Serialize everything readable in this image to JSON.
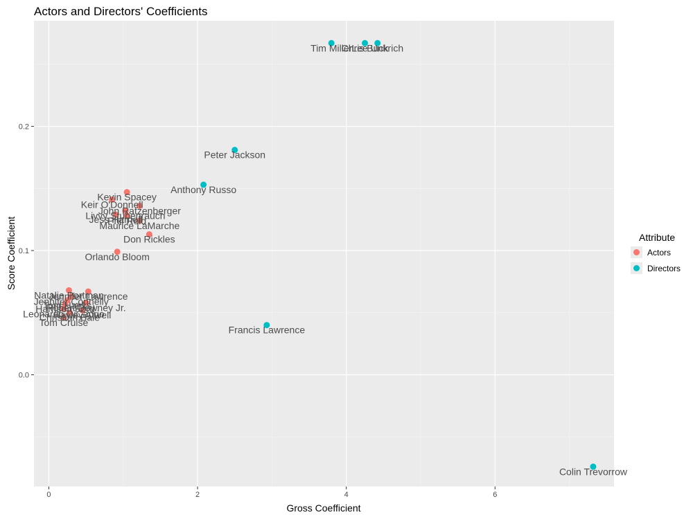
{
  "chart_data": {
    "type": "scatter",
    "title": "Actors and Directors' Coefficients",
    "xlabel": "Gross Coefficient",
    "ylabel": "Score Coefficient",
    "xlim": [
      -0.2,
      7.6
    ],
    "ylim": [
      -0.09,
      0.285
    ],
    "x_ticks": [
      0,
      2,
      4,
      6
    ],
    "y_ticks": [
      0.0,
      0.1,
      0.2
    ],
    "x_tick_labels": [
      "0",
      "2",
      "4",
      "6"
    ],
    "y_tick_labels": [
      "0.0",
      "0.1",
      "0.2"
    ],
    "grid": true,
    "legend": {
      "title": "Attribute",
      "position": "right",
      "entries": [
        {
          "label": "Actors",
          "color": "#F8766D"
        },
        {
          "label": "Directors",
          "color": "#00BFC4"
        }
      ]
    },
    "series": [
      {
        "name": "Actors",
        "color": "#F8766D",
        "points": [
          {
            "x": 1.05,
            "y": 0.147,
            "label": "Kevin Spacey"
          },
          {
            "x": 0.85,
            "y": 0.141,
            "label": "Keir O'Donnell"
          },
          {
            "x": 1.22,
            "y": 0.136,
            "label": "John Ratzenberger"
          },
          {
            "x": 1.03,
            "y": 0.132,
            "label": "Livvy Stubenrauch"
          },
          {
            "x": 0.9,
            "y": 0.129,
            "label": "Jess Harnell"
          },
          {
            "x": 1.05,
            "y": 0.128,
            "label": "Phil Reid"
          },
          {
            "x": 1.22,
            "y": 0.124,
            "label": "Maurice LaMarche"
          },
          {
            "x": 1.35,
            "y": 0.113,
            "label": "Don Rickles"
          },
          {
            "x": 0.92,
            "y": 0.099,
            "label": "Orlando Bloom"
          },
          {
            "x": 0.27,
            "y": 0.068,
            "label": "Natalie Portman"
          },
          {
            "x": 0.53,
            "y": 0.067,
            "label": "Jennifer Lawrence"
          },
          {
            "x": 0.3,
            "y": 0.063,
            "label": "Jennifer Connelly"
          },
          {
            "x": 0.5,
            "y": 0.058,
            "label": "Robert Downey Jr."
          },
          {
            "x": 0.25,
            "y": 0.06,
            "label": "Tom Hanks"
          },
          {
            "x": 0.22,
            "y": 0.057,
            "label": "Harrison Ford"
          },
          {
            "x": 0.45,
            "y": 0.052,
            "label": "Hayley Atwell"
          },
          {
            "x": 0.2,
            "y": 0.053,
            "label": "Leonardo DiCaprio"
          },
          {
            "x": 0.28,
            "y": 0.05,
            "label": "Christian Bale"
          },
          {
            "x": 0.2,
            "y": 0.046,
            "label": "Tom Cruise"
          }
        ]
      },
      {
        "name": "Directors",
        "color": "#00BFC4",
        "points": [
          {
            "x": 3.8,
            "y": 0.267,
            "label": "Tim Miller"
          },
          {
            "x": 4.25,
            "y": 0.267,
            "label": "Chris Buck"
          },
          {
            "x": 4.42,
            "y": 0.267,
            "label": "Lee Unkrich"
          },
          {
            "x": 2.5,
            "y": 0.181,
            "label": "Peter Jackson"
          },
          {
            "x": 2.08,
            "y": 0.153,
            "label": "Anthony Russo"
          },
          {
            "x": 2.93,
            "y": 0.04,
            "label": "Francis Lawrence"
          },
          {
            "x": 7.32,
            "y": -0.074,
            "label": "Colin Trevorrow"
          }
        ]
      }
    ]
  }
}
